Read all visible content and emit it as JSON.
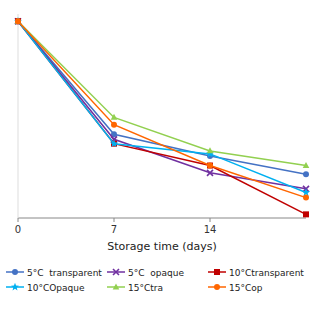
{
  "chart_data": {
    "type": "line",
    "xlabel": "Storage time (days)",
    "x": [
      0,
      7,
      14,
      21
    ],
    "series": [
      {
        "name": "5°C  transparent",
        "color": "#4472c4",
        "marker": "circle",
        "values": [
          8.9,
          7.35,
          7.05,
          6.8
        ]
      },
      {
        "name": "5°C  opaque",
        "color": "#7030a0",
        "marker": "x",
        "values": [
          8.9,
          7.28,
          6.82,
          6.6
        ]
      },
      {
        "name": "10°Ctransparent",
        "color": "#c00000",
        "marker": "square",
        "values": [
          8.9,
          7.22,
          6.92,
          6.25
        ]
      },
      {
        "name": "10°COpaque",
        "color": "#00b0f0",
        "marker": "star",
        "values": [
          8.9,
          7.22,
          7.08,
          6.55
        ]
      },
      {
        "name": "15°Ctra",
        "color": "#92d050",
        "marker": "triangle",
        "values": [
          8.9,
          7.58,
          7.12,
          6.92
        ]
      },
      {
        "name": "15°Cop",
        "color": "#ff6600",
        "marker": "circle",
        "values": [
          8.9,
          7.48,
          6.92,
          6.48
        ]
      }
    ],
    "xlim": [
      0,
      21
    ],
    "xticks": [
      0,
      7,
      14
    ],
    "ylim": [
      6.2,
      9.0
    ],
    "tick_labels": "x",
    "legend": "lower left",
    "background_color": "#ffffff"
  }
}
